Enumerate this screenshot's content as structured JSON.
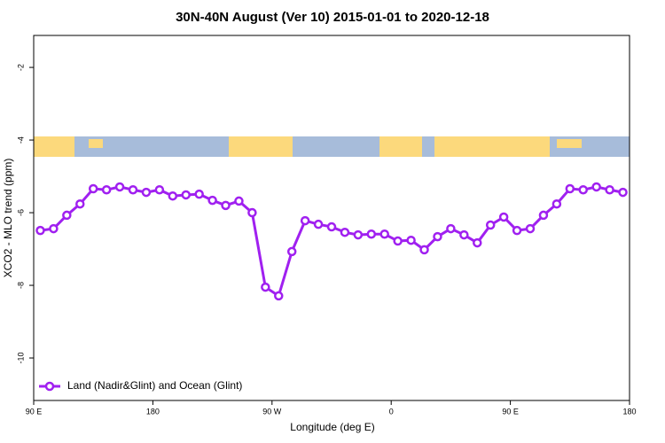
{
  "chart_data": {
    "type": "line",
    "title": "30N-40N August (Ver 10)   2015-01-01 to 2020-12-18",
    "x_label": "Longitude (deg E)",
    "y_label": "XCO2 - MLO trend (ppm)",
    "x": [
      95,
      105,
      115,
      125,
      135,
      145,
      155,
      165,
      175,
      185,
      195,
      205,
      215,
      225,
      235,
      245,
      255,
      265,
      275,
      285,
      295,
      305,
      315,
      325,
      335,
      345,
      355,
      365,
      375,
      385,
      395,
      405,
      415,
      425,
      435,
      445,
      455,
      465,
      475,
      485,
      495,
      505,
      515,
      525,
      535
    ],
    "series": [
      {
        "name": "Land (Nadir&Glint) and Ocean (Glint)",
        "color": "#a020f0",
        "values": [
          -6.49,
          -6.44,
          -6.07,
          -5.76,
          -5.34,
          -5.37,
          -5.29,
          -5.37,
          -5.44,
          -5.37,
          -5.54,
          -5.51,
          -5.49,
          -5.66,
          -5.8,
          -5.68,
          -6.0,
          -8.05,
          -8.29,
          -7.07,
          -6.22,
          -6.32,
          -6.39,
          -6.54,
          -6.61,
          -6.59,
          -6.59,
          -6.78,
          -6.76,
          -7.02,
          -6.66,
          -6.44,
          -6.61,
          -6.83,
          -6.34,
          -6.12,
          -6.49,
          -6.44,
          -6.07,
          -5.76,
          -5.34,
          -5.37,
          -5.29,
          -5.37,
          -5.44
        ]
      }
    ],
    "xlim": [
      90,
      540
    ],
    "xticks": [
      {
        "value": 90,
        "label": "90 E"
      },
      180,
      {
        "value": 270,
        "label": "90 W"
      },
      {
        "value": 360,
        "label": "0"
      },
      {
        "value": 450,
        "label": "90 E"
      },
      {
        "value": 540,
        "label": "180"
      }
    ],
    "ylim": [
      -11.17,
      -1.12
    ],
    "yticks": [
      -2,
      -4,
      -6,
      -8,
      -10
    ],
    "legend": "bottom-left"
  }
}
